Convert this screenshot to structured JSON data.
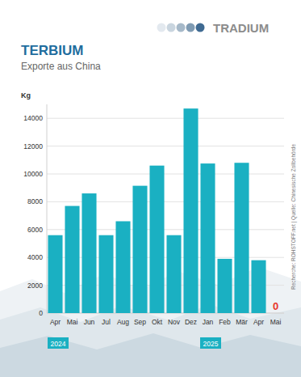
{
  "chart_data": {
    "type": "bar",
    "logo": "TRADIUM",
    "title": "TERBIUM",
    "subtitle": "Exporte aus China",
    "y_label": "Kg",
    "source": "Recherche: ROHSTOFF.net | Quelle: Chinesische Zollbehörde",
    "categories": [
      "Apr",
      "Mai",
      "Jun",
      "Jul",
      "Aug",
      "Sep",
      "Okt",
      "Nov",
      "Dez",
      "Jan",
      "Feb",
      "Mär",
      "Apr",
      "Mai"
    ],
    "year_labels": [
      "2024",
      null,
      null,
      null,
      null,
      null,
      null,
      null,
      null,
      "2025",
      null,
      null,
      null,
      null
    ],
    "values": [
      5600,
      7700,
      8600,
      5600,
      6600,
      9150,
      10600,
      5600,
      14700,
      10750,
      3900,
      10800,
      3800,
      0
    ],
    "value_labels": [
      null,
      null,
      null,
      null,
      null,
      null,
      null,
      null,
      null,
      null,
      null,
      null,
      null,
      "0"
    ],
    "color": "#1ab0c2",
    "ylim": [
      0,
      15000
    ],
    "yticks": [
      0,
      2000,
      4000,
      6000,
      8000,
      10000,
      12000,
      14000
    ],
    "grid": true
  }
}
